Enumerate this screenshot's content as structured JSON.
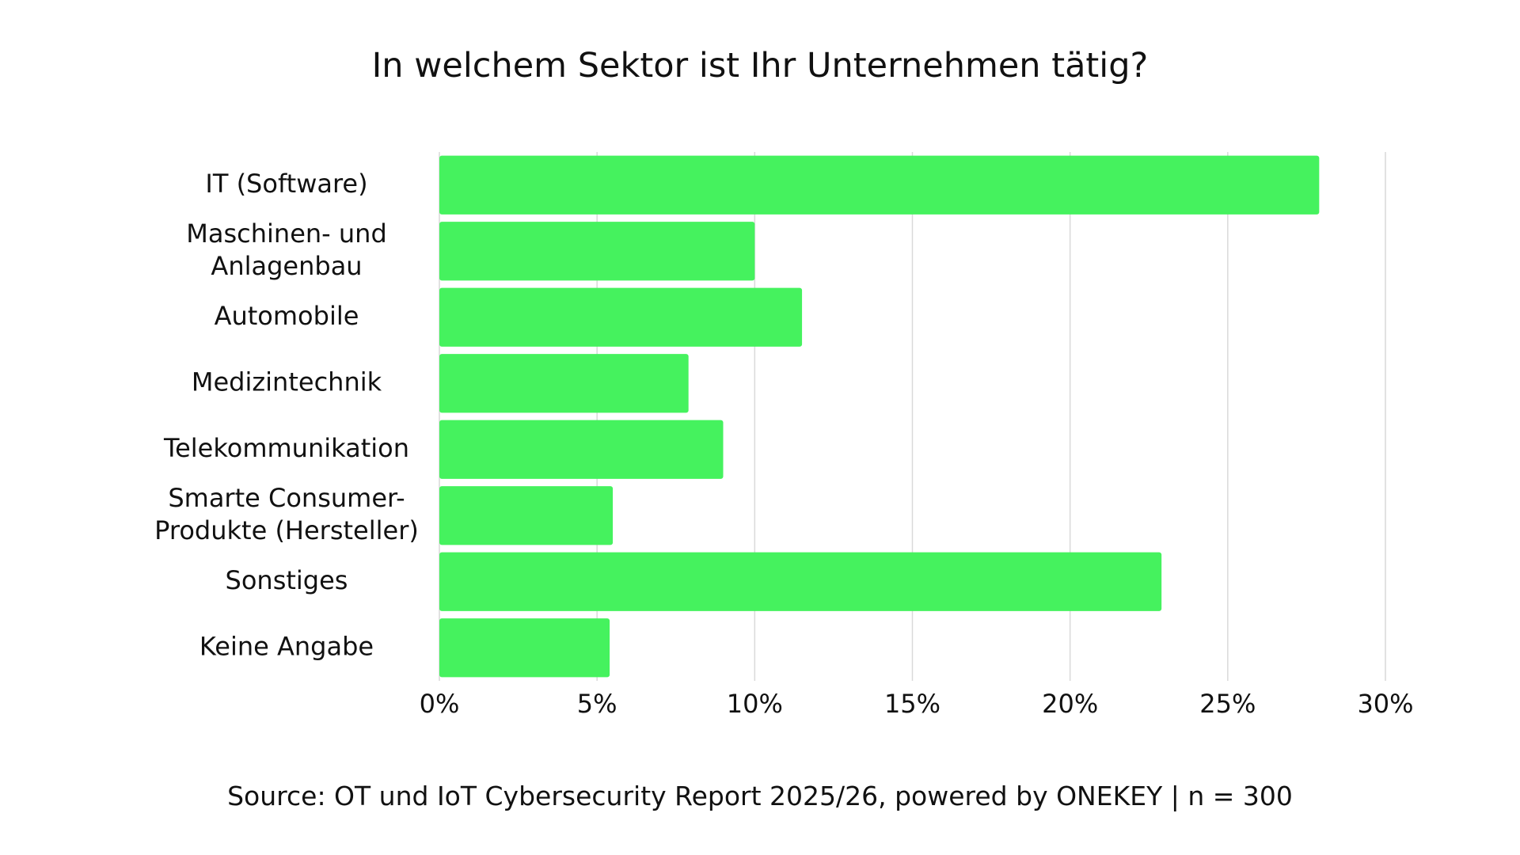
{
  "chart_data": {
    "type": "bar",
    "orientation": "horizontal",
    "title": "In welchem Sektor ist Ihr Unternehmen tätig?",
    "categories": [
      [
        "IT (Software)"
      ],
      [
        "Maschinen- und",
        "Anlagenbau"
      ],
      [
        "Automobile"
      ],
      [
        "Medizintechnik"
      ],
      [
        "Telekommunikation"
      ],
      [
        "Smarte Consumer-",
        "Produkte (Hersteller)"
      ],
      [
        "Sonstiges"
      ],
      [
        "Keine Angabe"
      ]
    ],
    "values": [
      27.9,
      10,
      11.5,
      7.9,
      9,
      5.5,
      22.9,
      5.4
    ],
    "xlim": [
      0,
      30
    ],
    "xticks": [
      "0%",
      "5%",
      "10%",
      "15%",
      "20%",
      "25%",
      "30%"
    ],
    "xtick_values": [
      0,
      5,
      10,
      15,
      20,
      25,
      30
    ],
    "grid": "vertical",
    "bar_color": "#45f25e",
    "grid_color": "#d9d9d9",
    "source": "Source: OT und IoT Cybersecurity Report 2025/26, powered by ONEKEY | n = 300"
  }
}
